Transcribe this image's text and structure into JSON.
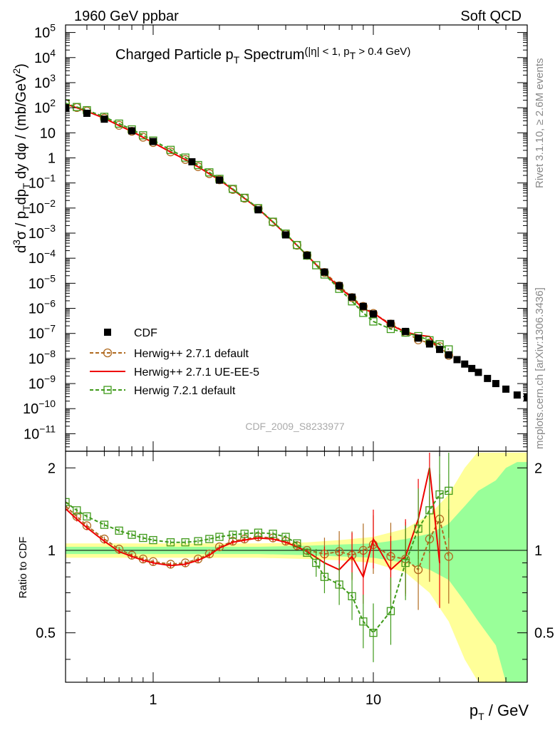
{
  "header": {
    "left": "1960 GeV ppbar",
    "right": "Soft QCD",
    "side_top": "Rivet 3.1.10, ≥ 2.6M events",
    "side_bottom": "mcplots.cern.ch [arXiv:1306.3436]",
    "watermark": "CDF_2009_S8233977"
  },
  "chart_data": {
    "type": "scatter",
    "title_parts": [
      "Charged Particle p",
      "T",
      " Spectrum",
      "(|η| < 1, p",
      "T",
      " > 0.4 GeV)"
    ],
    "ylabel_parts": [
      "d",
      "3",
      "σ / p",
      "T",
      "dp",
      "T",
      " dy dφ / (mb/GeV",
      "2",
      ")"
    ],
    "xlabel_parts": [
      "p",
      "T",
      " / GeV"
    ],
    "ratio_ylabel": "Ratio to CDF",
    "x_scale": "log",
    "xlim": [
      0.4,
      50
    ],
    "main_y_scale": "log",
    "main_ylim": [
      2e-12,
      200000.0
    ],
    "ratio_ylim": [
      0.33,
      2.3
    ],
    "x_ticks": [
      {
        "v": 1,
        "label": "1"
      },
      {
        "v": 10,
        "label": "10"
      }
    ],
    "main_y_ticks": [
      {
        "v": 100000.0,
        "base": "10",
        "exp": "5"
      },
      {
        "v": 10000.0,
        "base": "10",
        "exp": "4"
      },
      {
        "v": 1000.0,
        "base": "10",
        "exp": "3"
      },
      {
        "v": 100.0,
        "base": "10",
        "exp": "2"
      },
      {
        "v": 10,
        "base": "10",
        "exp": ""
      },
      {
        "v": 1,
        "base": "1",
        "exp": ""
      },
      {
        "v": 0.1,
        "base": "10",
        "exp": "−1"
      },
      {
        "v": 0.01,
        "base": "10",
        "exp": "−2"
      },
      {
        "v": 0.001,
        "base": "10",
        "exp": "−3"
      },
      {
        "v": 0.0001,
        "base": "10",
        "exp": "−4"
      },
      {
        "v": 1e-05,
        "base": "10",
        "exp": "−5"
      },
      {
        "v": 1e-06,
        "base": "10",
        "exp": "−6"
      },
      {
        "v": 1e-07,
        "base": "10",
        "exp": "−7"
      },
      {
        "v": 1e-08,
        "base": "10",
        "exp": "−8"
      },
      {
        "v": 1e-09,
        "base": "10",
        "exp": "−9"
      },
      {
        "v": 1e-10,
        "base": "10",
        "exp": "−10"
      },
      {
        "v": 1e-11,
        "base": "10",
        "exp": "−11"
      }
    ],
    "ratio_y_ticks": [
      {
        "v": 0.5,
        "label": "0.5"
      },
      {
        "v": 1,
        "label": "1"
      },
      {
        "v": 2,
        "label": "2"
      }
    ],
    "legend_position": "bottom-left",
    "series": [
      {
        "name": "CDF",
        "color": "#000000",
        "marker": "filled-square",
        "x": [
          0.4,
          0.5,
          0.6,
          0.8,
          1.0,
          1.5,
          2.0,
          3.0,
          4.0,
          5.0,
          6.0,
          7.0,
          8.0,
          9.0,
          10.0,
          12.0,
          14.0,
          16.0,
          18.0,
          20.0,
          22.0,
          24.0,
          26.0,
          28.0,
          30.0,
          33.0,
          36.0,
          40.0,
          45.0,
          50.0
        ],
        "y": [
          100,
          60,
          35,
          12,
          4.5,
          0.7,
          0.13,
          0.0085,
          0.00085,
          0.00013,
          2.8e-05,
          8e-06,
          2.8e-06,
          1.2e-06,
          6e-07,
          2.5e-07,
          1.2e-07,
          6.5e-08,
          3.8e-08,
          2.3e-08,
          1.4e-08,
          9e-09,
          6e-09,
          4e-09,
          2.8e-09,
          1.6e-09,
          1e-09,
          6e-10,
          3.5e-10,
          2.8e-10
        ],
        "ratio_band_inner": {
          "x": [
            0.4,
            1.0,
            3.0,
            5.0,
            7.0,
            10.0,
            14.0,
            18.0,
            22.0,
            26.0,
            30.0,
            36.0,
            40.0,
            45.0,
            50.0
          ],
          "lo": [
            0.97,
            0.97,
            0.97,
            0.96,
            0.95,
            0.94,
            0.9,
            0.85,
            0.78,
            0.65,
            0.55,
            0.45,
            0.33,
            0.33,
            0.33
          ],
          "hi": [
            1.03,
            1.03,
            1.03,
            1.04,
            1.05,
            1.06,
            1.1,
            1.15,
            1.25,
            1.45,
            1.65,
            1.8,
            2.0,
            2.1,
            2.1
          ]
        },
        "ratio_band_outer": {
          "x": [
            0.4,
            1.0,
            3.0,
            5.0,
            7.0,
            10.0,
            14.0,
            18.0,
            22.0,
            26.0,
            30.0,
            36.0,
            40.0,
            45.0,
            50.0
          ],
          "lo": [
            0.94,
            0.94,
            0.94,
            0.93,
            0.92,
            0.9,
            0.83,
            0.7,
            0.55,
            0.4,
            0.33,
            0.33,
            0.33,
            0.33,
            0.33
          ],
          "hi": [
            1.06,
            1.06,
            1.06,
            1.07,
            1.09,
            1.12,
            1.2,
            1.35,
            1.6,
            2.0,
            2.3,
            2.3,
            2.3,
            2.3,
            2.3
          ]
        }
      },
      {
        "name": "Herwig++ 2.7.1 default",
        "color": "#b06a20",
        "marker": "open-circle",
        "dash": "5,3",
        "ratio_x": [
          0.4,
          0.45,
          0.5,
          0.6,
          0.7,
          0.8,
          0.9,
          1.0,
          1.2,
          1.4,
          1.6,
          1.8,
          2.0,
          2.3,
          2.6,
          3.0,
          3.5,
          4.0,
          4.5,
          5.0,
          6.0,
          7.0,
          8.0,
          9.0,
          10.0,
          12.0,
          14.0,
          16.0,
          18.0,
          20.0,
          22.0
        ],
        "ratio_y": [
          1.45,
          1.33,
          1.23,
          1.1,
          1.01,
          0.96,
          0.93,
          0.91,
          0.89,
          0.9,
          0.93,
          0.97,
          1.03,
          1.08,
          1.1,
          1.12,
          1.11,
          1.08,
          1.04,
          1.0,
          0.97,
          0.99,
          0.96,
          1.0,
          1.05,
          0.95,
          0.93,
          0.85,
          1.1,
          1.3,
          0.95
        ]
      },
      {
        "name": "Herwig++ 2.7.1 UE-EE-5",
        "color": "#ee0000",
        "marker": "none",
        "ratio_x": [
          0.4,
          0.45,
          0.5,
          0.6,
          0.7,
          0.8,
          0.9,
          1.0,
          1.2,
          1.4,
          1.6,
          1.8,
          2.0,
          2.3,
          2.6,
          3.0,
          3.5,
          4.0,
          4.5,
          5.0,
          6.0,
          7.0,
          8.0,
          9.0,
          10.0,
          12.0,
          14.0,
          16.0,
          18.0,
          20.0
        ],
        "ratio_y": [
          1.42,
          1.3,
          1.21,
          1.08,
          0.99,
          0.95,
          0.92,
          0.9,
          0.88,
          0.89,
          0.92,
          0.96,
          1.02,
          1.07,
          1.09,
          1.11,
          1.1,
          1.07,
          1.03,
          0.99,
          0.9,
          0.85,
          0.95,
          0.8,
          1.1,
          0.85,
          0.95,
          1.3,
          2.0,
          0.9
        ]
      },
      {
        "name": "Herwig 7.2.1 default",
        "color": "#3f9a1a",
        "marker": "open-square",
        "dash": "5,3",
        "ratio_x": [
          0.4,
          0.45,
          0.5,
          0.6,
          0.7,
          0.8,
          0.9,
          1.0,
          1.2,
          1.4,
          1.6,
          1.8,
          2.0,
          2.3,
          2.6,
          3.0,
          3.5,
          4.0,
          4.5,
          5.0,
          5.5,
          6.0,
          7.0,
          8.0,
          9.0,
          10.0,
          12.0,
          14.0,
          16.0,
          18.0,
          20.0,
          22.0
        ],
        "ratio_y": [
          1.5,
          1.4,
          1.33,
          1.24,
          1.18,
          1.14,
          1.11,
          1.09,
          1.07,
          1.07,
          1.08,
          1.1,
          1.12,
          1.14,
          1.15,
          1.16,
          1.15,
          1.12,
          1.06,
          0.98,
          0.9,
          0.8,
          0.75,
          0.68,
          0.55,
          0.5,
          0.6,
          0.9,
          1.2,
          1.4,
          1.6,
          1.65
        ]
      }
    ]
  }
}
